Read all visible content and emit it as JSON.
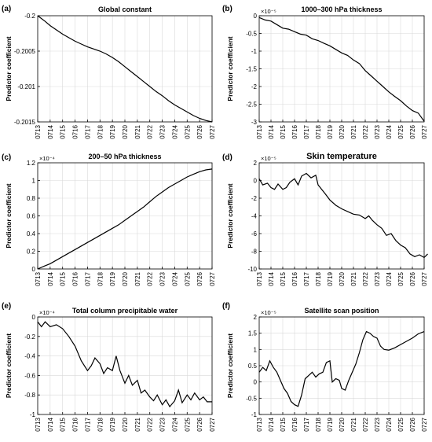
{
  "x_tick_labels": [
    "0713",
    "0714",
    "0715",
    "0716",
    "0717",
    "0718",
    "0719",
    "0720",
    "0721",
    "0722",
    "0723",
    "0724",
    "0725",
    "0726",
    "0727"
  ],
  "chart_data": [
    {
      "type": "line",
      "letter": "(a)",
      "title": "Global constant",
      "ylabel": "Predictor coefficient",
      "exponent": "",
      "ylim": [
        -0.2015,
        -0.2
      ],
      "yticks": [
        "-0.2",
        "-0.2005",
        "-0.201",
        "-0.2015"
      ],
      "ytick_values": [
        -0.2,
        -0.2005,
        -0.201,
        -0.2015
      ],
      "x_range": [
        0,
        14
      ],
      "grid": true,
      "points": [
        [
          0,
          -0.2
        ],
        [
          0.3,
          -0.20004
        ],
        [
          0.6,
          -0.20008
        ],
        [
          1,
          -0.20014
        ],
        [
          1.5,
          -0.2002
        ],
        [
          2,
          -0.20026
        ],
        [
          2.5,
          -0.20031
        ],
        [
          3,
          -0.20036
        ],
        [
          3.5,
          -0.2004
        ],
        [
          4,
          -0.20044
        ],
        [
          4.5,
          -0.20047
        ],
        [
          5,
          -0.2005
        ],
        [
          5.5,
          -0.20054
        ],
        [
          6,
          -0.20059
        ],
        [
          6.5,
          -0.20065
        ],
        [
          7,
          -0.20072
        ],
        [
          7.5,
          -0.20079
        ],
        [
          8,
          -0.20086
        ],
        [
          8.5,
          -0.20093
        ],
        [
          9,
          -0.201
        ],
        [
          9.5,
          -0.20107
        ],
        [
          10,
          -0.20113
        ],
        [
          10.5,
          -0.2012
        ],
        [
          11,
          -0.20126
        ],
        [
          11.5,
          -0.20131
        ],
        [
          12,
          -0.20136
        ],
        [
          12.5,
          -0.20141
        ],
        [
          13,
          -0.20145
        ],
        [
          13.5,
          -0.20148
        ],
        [
          14,
          -0.2015
        ]
      ]
    },
    {
      "type": "line",
      "letter": "(b)",
      "title": "1000–300 hPa thickness",
      "ylabel": "Predictor coefficient",
      "exponent": "×10⁻⁵",
      "ylim": [
        -3,
        0
      ],
      "yticks": [
        "0",
        "-0.5",
        "-1",
        "-1.5",
        "-2",
        "-2.5",
        "-3"
      ],
      "ytick_values": [
        0,
        -0.5,
        -1,
        -1.5,
        -2,
        -2.5,
        -3
      ],
      "x_range": [
        0,
        14
      ],
      "grid": true,
      "points": [
        [
          0,
          -0.05
        ],
        [
          0.5,
          -0.12
        ],
        [
          1,
          -0.15
        ],
        [
          1.5,
          -0.25
        ],
        [
          2,
          -0.35
        ],
        [
          2.5,
          -0.38
        ],
        [
          3,
          -0.45
        ],
        [
          3.5,
          -0.52
        ],
        [
          4,
          -0.55
        ],
        [
          4.5,
          -0.65
        ],
        [
          5,
          -0.7
        ],
        [
          5.5,
          -0.78
        ],
        [
          6,
          -0.85
        ],
        [
          6.5,
          -0.95
        ],
        [
          7,
          -1.05
        ],
        [
          7.5,
          -1.12
        ],
        [
          8,
          -1.25
        ],
        [
          8.5,
          -1.35
        ],
        [
          9,
          -1.55
        ],
        [
          9.5,
          -1.7
        ],
        [
          10,
          -1.85
        ],
        [
          10.5,
          -2.0
        ],
        [
          11,
          -2.15
        ],
        [
          11.5,
          -2.28
        ],
        [
          12,
          -2.4
        ],
        [
          12.5,
          -2.55
        ],
        [
          13,
          -2.68
        ],
        [
          13.5,
          -2.75
        ],
        [
          14,
          -2.98
        ]
      ]
    },
    {
      "type": "line",
      "letter": "(c)",
      "title": "200–50 hPa thickness",
      "ylabel": "Predictor coefficient",
      "exponent": "×10⁻⁴",
      "ylim": [
        0,
        1.2
      ],
      "yticks": [
        "0",
        "0.2",
        "0.4",
        "0.6",
        "0.8",
        "1",
        "1.2"
      ],
      "ytick_values": [
        0,
        0.2,
        0.4,
        0.6,
        0.8,
        1,
        1.2
      ],
      "x_range": [
        0,
        14
      ],
      "grid": true,
      "points": [
        [
          0,
          0.0
        ],
        [
          0.5,
          0.03
        ],
        [
          1,
          0.06
        ],
        [
          1.5,
          0.1
        ],
        [
          2,
          0.14
        ],
        [
          2.5,
          0.18
        ],
        [
          3,
          0.22
        ],
        [
          3.5,
          0.26
        ],
        [
          4,
          0.3
        ],
        [
          4.5,
          0.34
        ],
        [
          5,
          0.38
        ],
        [
          5.5,
          0.42
        ],
        [
          6,
          0.46
        ],
        [
          6.5,
          0.5
        ],
        [
          7,
          0.55
        ],
        [
          7.5,
          0.6
        ],
        [
          8,
          0.65
        ],
        [
          8.5,
          0.7
        ],
        [
          9,
          0.76
        ],
        [
          9.5,
          0.82
        ],
        [
          10,
          0.87
        ],
        [
          10.5,
          0.92
        ],
        [
          11,
          0.96
        ],
        [
          11.5,
          1.0
        ],
        [
          12,
          1.04
        ],
        [
          12.5,
          1.07
        ],
        [
          13,
          1.1
        ],
        [
          13.5,
          1.12
        ],
        [
          14,
          1.13
        ]
      ]
    },
    {
      "type": "line",
      "letter": "(d)",
      "title": "Skin temperature",
      "ylabel": "Predictor coefficient",
      "exponent": "×10⁻⁵",
      "ylim": [
        -10,
        2
      ],
      "yticks": [
        "2",
        "0",
        "-2",
        "-4",
        "-6",
        "-8",
        "-10"
      ],
      "ytick_values": [
        2,
        0,
        -2,
        -4,
        -6,
        -8,
        -10
      ],
      "x_range": [
        0,
        14
      ],
      "grid": true,
      "points": [
        [
          0,
          0.2
        ],
        [
          0.3,
          -0.5
        ],
        [
          0.7,
          -0.3
        ],
        [
          1,
          -0.8
        ],
        [
          1.3,
          -1.0
        ],
        [
          1.6,
          -0.4
        ],
        [
          2,
          -1.0
        ],
        [
          2.3,
          -0.8
        ],
        [
          2.6,
          -0.2
        ],
        [
          3,
          0.2
        ],
        [
          3.3,
          -0.5
        ],
        [
          3.6,
          0.5
        ],
        [
          4,
          0.8
        ],
        [
          4.4,
          0.3
        ],
        [
          4.8,
          0.6
        ],
        [
          5,
          -0.5
        ],
        [
          5.3,
          -1.0
        ],
        [
          5.6,
          -1.5
        ],
        [
          6,
          -2.2
        ],
        [
          6.5,
          -2.8
        ],
        [
          7,
          -3.2
        ],
        [
          7.5,
          -3.5
        ],
        [
          8,
          -3.8
        ],
        [
          8.5,
          -3.9
        ],
        [
          9,
          -4.3
        ],
        [
          9.3,
          -4.0
        ],
        [
          9.6,
          -4.5
        ],
        [
          10,
          -5.0
        ],
        [
          10.4,
          -5.4
        ],
        [
          10.8,
          -6.2
        ],
        [
          11.2,
          -6.0
        ],
        [
          11.6,
          -6.8
        ],
        [
          12,
          -7.3
        ],
        [
          12.4,
          -7.6
        ],
        [
          12.8,
          -8.3
        ],
        [
          13.2,
          -8.6
        ],
        [
          13.6,
          -8.4
        ],
        [
          14,
          -8.7
        ],
        [
          14.3,
          -8.3
        ]
      ]
    },
    {
      "type": "line",
      "letter": "(e)",
      "title": "Total column precipitable water",
      "ylabel": "Predictor coefficient",
      "exponent": "×10⁻⁴",
      "ylim": [
        -1,
        0
      ],
      "yticks": [
        "0",
        "-0.2",
        "-0.4",
        "-0.6",
        "-0.8",
        "-1"
      ],
      "ytick_values": [
        0,
        -0.2,
        -0.4,
        -0.6,
        -0.8,
        -1
      ],
      "x_range": [
        0,
        14
      ],
      "grid": true,
      "points": [
        [
          0,
          -0.05
        ],
        [
          0.3,
          -0.1
        ],
        [
          0.6,
          -0.05
        ],
        [
          1,
          -0.1
        ],
        [
          1.5,
          -0.08
        ],
        [
          2,
          -0.12
        ],
        [
          2.5,
          -0.2
        ],
        [
          3,
          -0.3
        ],
        [
          3.5,
          -0.45
        ],
        [
          4,
          -0.55
        ],
        [
          4.3,
          -0.5
        ],
        [
          4.6,
          -0.42
        ],
        [
          5,
          -0.48
        ],
        [
          5.3,
          -0.58
        ],
        [
          5.6,
          -0.52
        ],
        [
          6,
          -0.55
        ],
        [
          6.3,
          -0.4
        ],
        [
          6.6,
          -0.55
        ],
        [
          7,
          -0.68
        ],
        [
          7.3,
          -0.6
        ],
        [
          7.6,
          -0.7
        ],
        [
          8,
          -0.65
        ],
        [
          8.3,
          -0.78
        ],
        [
          8.6,
          -0.75
        ],
        [
          9,
          -0.82
        ],
        [
          9.3,
          -0.86
        ],
        [
          9.6,
          -0.8
        ],
        [
          10,
          -0.9
        ],
        [
          10.3,
          -0.85
        ],
        [
          10.6,
          -0.92
        ],
        [
          11,
          -0.86
        ],
        [
          11.3,
          -0.75
        ],
        [
          11.6,
          -0.88
        ],
        [
          12,
          -0.8
        ],
        [
          12.3,
          -0.85
        ],
        [
          12.6,
          -0.78
        ],
        [
          13,
          -0.85
        ],
        [
          13.3,
          -0.82
        ],
        [
          13.6,
          -0.87
        ],
        [
          14,
          -0.87
        ]
      ]
    },
    {
      "type": "line",
      "letter": "(f)",
      "title": "Satellite scan position",
      "ylabel": "Predictor coefficient",
      "exponent": "×10⁻⁵",
      "ylim": [
        -1,
        2
      ],
      "yticks": [
        "2",
        "1.5",
        "1",
        "0.5",
        "0",
        "-0.5",
        "-1"
      ],
      "ytick_values": [
        2,
        1.5,
        1,
        0.5,
        0,
        -0.5,
        -1
      ],
      "x_range": [
        0,
        14
      ],
      "grid": true,
      "points": [
        [
          0,
          0.3
        ],
        [
          0.3,
          0.45
        ],
        [
          0.6,
          0.35
        ],
        [
          0.9,
          0.65
        ],
        [
          1.2,
          0.45
        ],
        [
          1.5,
          0.3
        ],
        [
          1.8,
          0.05
        ],
        [
          2.1,
          -0.2
        ],
        [
          2.4,
          -0.35
        ],
        [
          2.7,
          -0.6
        ],
        [
          3,
          -0.7
        ],
        [
          3.3,
          -0.75
        ],
        [
          3.6,
          -0.4
        ],
        [
          3.9,
          0.1
        ],
        [
          4.2,
          0.2
        ],
        [
          4.5,
          0.3
        ],
        [
          4.8,
          0.15
        ],
        [
          5.1,
          0.25
        ],
        [
          5.4,
          0.3
        ],
        [
          5.7,
          0.6
        ],
        [
          6,
          0.65
        ],
        [
          6.2,
          0.0
        ],
        [
          6.5,
          0.1
        ],
        [
          6.8,
          0.05
        ],
        [
          7,
          -0.2
        ],
        [
          7.3,
          -0.25
        ],
        [
          7.6,
          0.05
        ],
        [
          7.9,
          0.3
        ],
        [
          8.2,
          0.55
        ],
        [
          8.5,
          0.9
        ],
        [
          8.8,
          1.3
        ],
        [
          9.1,
          1.55
        ],
        [
          9.4,
          1.5
        ],
        [
          9.7,
          1.4
        ],
        [
          10,
          1.35
        ],
        [
          10.3,
          1.1
        ],
        [
          10.6,
          1.0
        ],
        [
          11,
          0.98
        ],
        [
          11.5,
          1.05
        ],
        [
          12,
          1.15
        ],
        [
          12.5,
          1.25
        ],
        [
          13,
          1.35
        ],
        [
          13.5,
          1.48
        ],
        [
          14,
          1.55
        ]
      ]
    }
  ]
}
